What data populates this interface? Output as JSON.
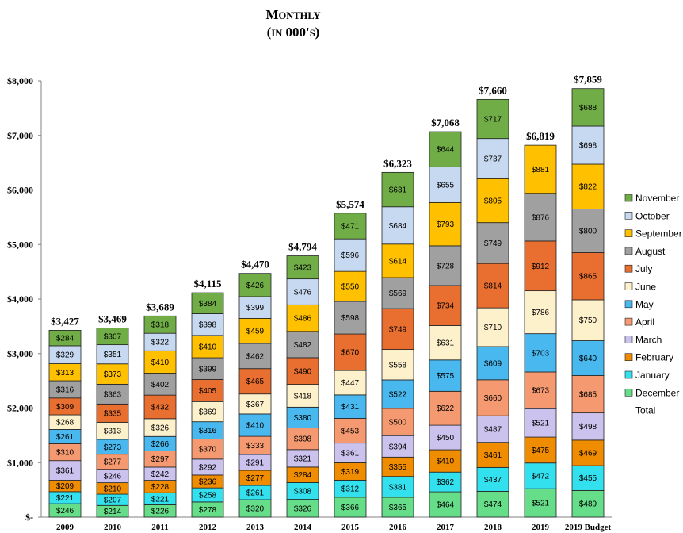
{
  "chart_data": {
    "type": "bar",
    "stacked": true,
    "title": "Monthly",
    "subtitle": "(in 000's)",
    "xlabel": "",
    "ylabel": "",
    "ylim": [
      0,
      8000
    ],
    "y_ticks": [
      0,
      1000,
      2000,
      3000,
      4000,
      5000,
      6000,
      7000,
      8000
    ],
    "y_tick_labels": [
      "$-",
      "$1,000",
      "$2,000",
      "$3,000",
      "$4,000",
      "$5,000",
      "$6,000",
      "$7,000",
      "$8,000"
    ],
    "categories": [
      "2009",
      "2010",
      "2011",
      "2012",
      "2013",
      "2014",
      "2015",
      "2016",
      "2017",
      "2018",
      "2019",
      "2019 Budget"
    ],
    "grid": false,
    "legend_position": "right",
    "series": [
      {
        "name": "December",
        "color": "#66dd88",
        "values": [
          246,
          214,
          226,
          278,
          320,
          326,
          366,
          365,
          464,
          474,
          521,
          489
        ],
        "labels": [
          "$246",
          "$214",
          "$226",
          "$278",
          "$320",
          "$326",
          "$366",
          "$365",
          "$464",
          "$474",
          "$521",
          "$489"
        ]
      },
      {
        "name": "January",
        "color": "#33e0ee",
        "values": [
          221,
          207,
          221,
          258,
          261,
          308,
          312,
          381,
          362,
          437,
          472,
          455
        ],
        "labels": [
          "$221",
          "$207",
          "$221",
          "$258",
          "$261",
          "$308",
          "$312",
          "$381",
          "$362",
          "$437",
          "$472",
          "$455"
        ]
      },
      {
        "name": "February",
        "color": "#f08c00",
        "values": [
          209,
          210,
          228,
          236,
          277,
          284,
          319,
          355,
          410,
          461,
          475,
          469
        ],
        "labels": [
          "$209",
          "$210",
          "$228",
          "$236",
          "$277",
          "$284",
          "$319",
          "$355",
          "$410",
          "$461",
          "$475",
          "$469"
        ]
      },
      {
        "name": "March",
        "color": "#ccc2ee",
        "values": [
          361,
          246,
          242,
          292,
          291,
          321,
          361,
          394,
          450,
          487,
          521,
          498
        ],
        "labels": [
          "$361",
          "$246",
          "$242",
          "$292",
          "$291",
          "$321",
          "$361",
          "$394",
          "$450",
          "$487",
          "$521",
          "$498"
        ]
      },
      {
        "name": "April",
        "color": "#f59a70",
        "values": [
          310,
          277,
          297,
          370,
          333,
          398,
          453,
          500,
          622,
          660,
          673,
          685
        ],
        "labels": [
          "$310",
          "$277",
          "$297",
          "$370",
          "$333",
          "$398",
          "$453",
          "$500",
          "$622",
          "$660",
          "$673",
          "$685"
        ]
      },
      {
        "name": "May",
        "color": "#48b8ee",
        "values": [
          261,
          273,
          266,
          316,
          410,
          380,
          431,
          522,
          575,
          609,
          703,
          640
        ],
        "labels": [
          "$261",
          "$273",
          "$266",
          "$316",
          "$410",
          "$380",
          "$431",
          "$522",
          "$575",
          "$609",
          "$703",
          "$640"
        ]
      },
      {
        "name": "June",
        "color": "#fdf1cc",
        "values": [
          268,
          313,
          326,
          369,
          367,
          418,
          447,
          558,
          631,
          710,
          786,
          750
        ],
        "labels": [
          "$268",
          "$313",
          "$326",
          "$369",
          "$367",
          "$418",
          "$447",
          "$558",
          "$631",
          "$710",
          "$786",
          "$750"
        ]
      },
      {
        "name": "July",
        "color": "#e86f30",
        "values": [
          309,
          335,
          432,
          405,
          465,
          490,
          670,
          749,
          734,
          814,
          912,
          865
        ],
        "labels": [
          "$309",
          "$335",
          "$432",
          "$405",
          "$465",
          "$490",
          "$670",
          "$749",
          "$734",
          "$814",
          "$912",
          "$865"
        ]
      },
      {
        "name": "August",
        "color": "#a0a0a0",
        "values": [
          316,
          363,
          402,
          399,
          462,
          482,
          598,
          569,
          728,
          749,
          876,
          800
        ],
        "labels": [
          "$316",
          "$363",
          "$402",
          "$399",
          "$462",
          "$482",
          "$598",
          "$569",
          "$728",
          "$749",
          "$876",
          "$800"
        ]
      },
      {
        "name": "September",
        "color": "#ffc000",
        "values": [
          313,
          373,
          410,
          410,
          459,
          486,
          550,
          614,
          793,
          805,
          881,
          822
        ],
        "labels": [
          "$313",
          "$373",
          "$410",
          "$410",
          "$459",
          "$486",
          "$550",
          "$614",
          "$793",
          "$805",
          "$881",
          "$822"
        ]
      },
      {
        "name": "October",
        "color": "#c6d9f0",
        "values": [
          329,
          351,
          322,
          398,
          399,
          476,
          596,
          684,
          655,
          737,
          0,
          698
        ],
        "labels": [
          "$329",
          "$351",
          "$322",
          "$398",
          "$399",
          "$476",
          "$596",
          "$684",
          "$655",
          "$737",
          "",
          "$698"
        ]
      },
      {
        "name": "November",
        "color": "#70ad47",
        "values": [
          284,
          307,
          318,
          384,
          426,
          423,
          471,
          631,
          644,
          717,
          0,
          688
        ],
        "labels": [
          "$284",
          "$307",
          "$318",
          "$384",
          "$426",
          "$423",
          "$471",
          "$631",
          "$644",
          "$717",
          "",
          "$688"
        ]
      }
    ],
    "totals": [
      3427,
      3469,
      3689,
      4115,
      4470,
      4794,
      5574,
      6323,
      7068,
      7660,
      6819,
      7859
    ],
    "total_labels": [
      "$3,427",
      "$3,469",
      "$3,689",
      "$4,115",
      "$4,470",
      "$4,794",
      "$5,574",
      "$6,323",
      "$7,068",
      "$7,660",
      "$6,819",
      "$7,859"
    ],
    "legend": {
      "entries": [
        "November",
        "October",
        "September",
        "August",
        "July",
        "June",
        "May",
        "April",
        "March",
        "February",
        "January",
        "December",
        "Total"
      ]
    }
  }
}
